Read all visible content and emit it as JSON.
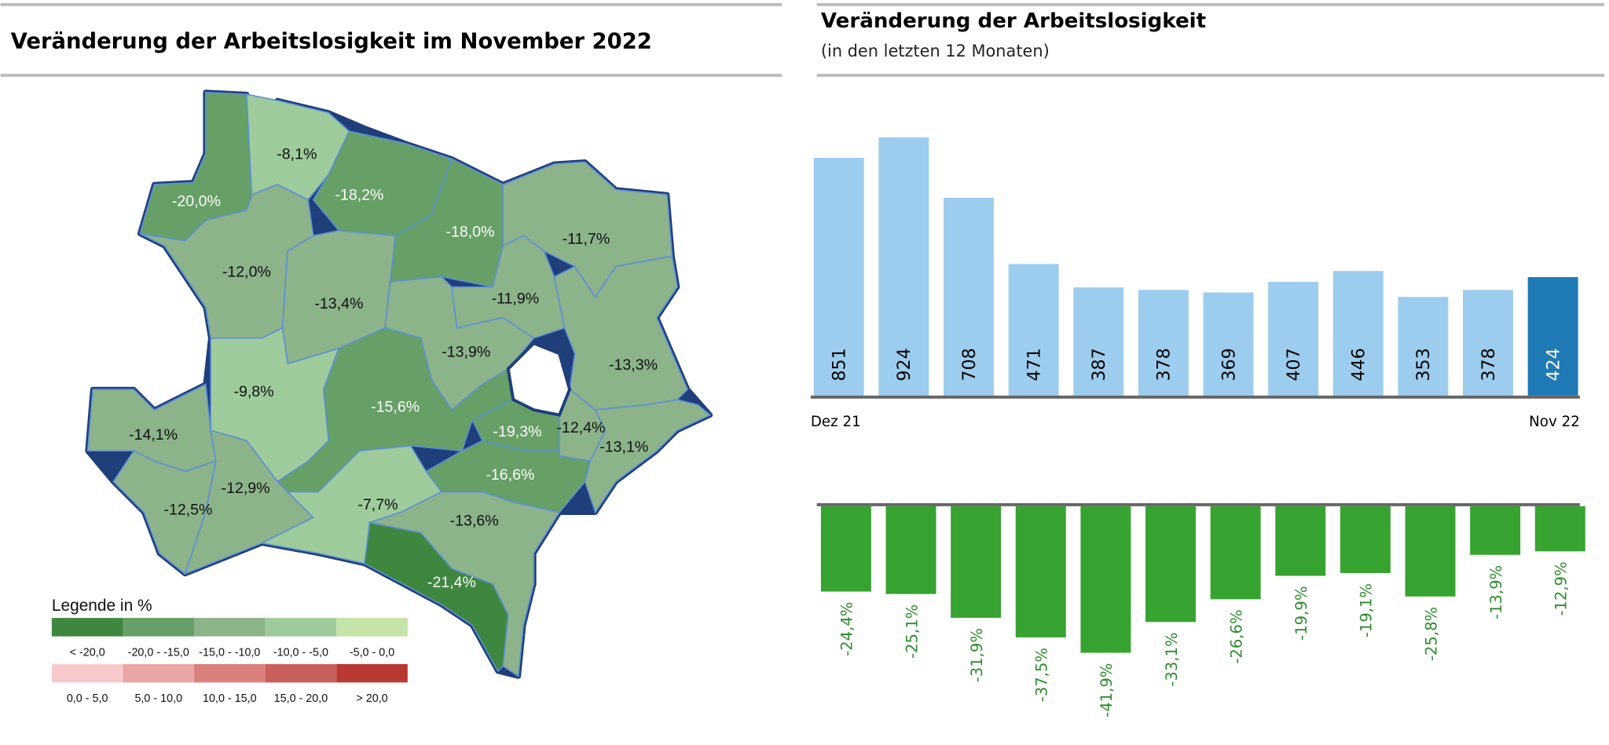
{
  "left_panel": {
    "title": "Veränderung der Arbeitslosigkeit im November 2022",
    "map": {
      "regions": [
        {
          "label": "-20,0%",
          "value": -20.0
        },
        {
          "label": "-8,1%",
          "value": -8.1
        },
        {
          "label": "-18,2%",
          "value": -18.2
        },
        {
          "label": "-18,0%",
          "value": -18.0
        },
        {
          "label": "-12,0%",
          "value": -12.0
        },
        {
          "label": "-13,4%",
          "value": -13.4
        },
        {
          "label": "-11,7%",
          "value": -11.7
        },
        {
          "label": "-11,9%",
          "value": -11.9
        },
        {
          "label": "-13,9%",
          "value": -13.9
        },
        {
          "label": "-13,3%",
          "value": -13.3
        },
        {
          "label": "-9,8%",
          "value": -9.8
        },
        {
          "label": "-15,6%",
          "value": -15.6
        },
        {
          "label": "-19,3%",
          "value": -19.3
        },
        {
          "label": "-12,4%",
          "value": -12.4
        },
        {
          "label": "-13,1%",
          "value": -13.1
        },
        {
          "label": "-16,6%",
          "value": -16.6
        },
        {
          "label": "-14,1%",
          "value": -14.1
        },
        {
          "label": "-12,5%",
          "value": -12.5
        },
        {
          "label": "-12,9%",
          "value": -12.9
        },
        {
          "label": "-7,7%",
          "value": -7.7
        },
        {
          "label": "-13,6%",
          "value": -13.6
        },
        {
          "label": "-21,4%",
          "value": -21.4
        }
      ]
    },
    "legend": {
      "title": "Legende in %",
      "green": [
        {
          "label": "< -20,0",
          "color": "#3f873f"
        },
        {
          "label": "-20,0 - -15,0",
          "color": "#66a066"
        },
        {
          "label": "-15,0 - -10,0",
          "color": "#8cb38a"
        },
        {
          "label": "-10,0 - -5,0",
          "color": "#9ecb9b"
        },
        {
          "label": "-5,0 - 0,0",
          "color": "#c6e3a8"
        }
      ],
      "red": [
        {
          "label": "0,0 - 5,0",
          "color": "#f8cacb"
        },
        {
          "label": "5,0 - 10,0",
          "color": "#e9a6a6"
        },
        {
          "label": "10,0 - 15,0",
          "color": "#d9807c"
        },
        {
          "label": "15,0 - 20,0",
          "color": "#c95f5a"
        },
        {
          "label": "> 20,0",
          "color": "#b93a33"
        }
      ]
    }
  },
  "right_panel": {
    "title": "Veränderung der Arbeitslosigkeit",
    "subtitle": "(in den letzten 12 Monaten)"
  },
  "chart_data": [
    {
      "type": "bar",
      "title": "Veränderung der Arbeitslosigkeit",
      "subtitle": "(in den letzten 12 Monaten)",
      "x_labels": [
        "Dez 21",
        "Nov 22"
      ],
      "values": [
        851,
        924,
        708,
        471,
        387,
        378,
        369,
        407,
        446,
        353,
        378,
        424
      ],
      "labels": [
        "851",
        "924",
        "708",
        "471",
        "387",
        "378",
        "369",
        "407",
        "446",
        "353",
        "378",
        "424"
      ],
      "colors": {
        "bar": "#9ccdee",
        "highlight": "#1f7ab5"
      },
      "ylim": [
        0,
        924
      ]
    },
    {
      "type": "bar",
      "values": [
        -24.4,
        -25.1,
        -31.9,
        -37.5,
        -41.9,
        -33.1,
        -26.6,
        -19.9,
        -19.1,
        -25.8,
        -13.9,
        -12.9
      ],
      "labels": [
        "-24,4%",
        "-25,1%",
        "-31,9%",
        "-37,5%",
        "-41,9%",
        "-33,1%",
        "-26,6%",
        "-19,9%",
        "-19,1%",
        "-25,8%",
        "-13,9%",
        "-12,9%"
      ],
      "colors": {
        "bar": "#37a330",
        "label": "#2e8b2e"
      },
      "ylim": [
        -41.9,
        0
      ]
    }
  ]
}
